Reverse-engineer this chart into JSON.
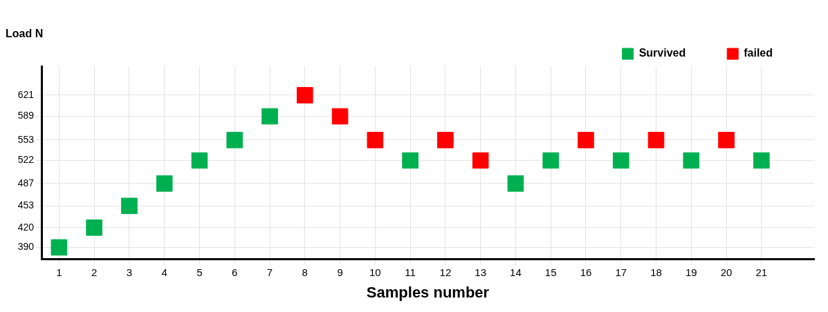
{
  "chart_data": {
    "type": "scatter",
    "xlabel": "Samples number",
    "ylabel": "Load N",
    "series": [
      {
        "name": "Survived",
        "color": "#00b050",
        "x": [
          1,
          2,
          3,
          4,
          5,
          6,
          7,
          11,
          14,
          15,
          17,
          19,
          21
        ],
        "values": [
          390,
          420,
          453,
          487,
          522,
          553,
          589,
          522,
          487,
          522,
          522,
          522,
          522
        ]
      },
      {
        "name": "failed",
        "color": "#ff0000",
        "x": [
          8,
          9,
          10,
          12,
          13,
          16,
          18,
          20
        ],
        "values": [
          621,
          589,
          553,
          553,
          522,
          553,
          553,
          553
        ]
      }
    ],
    "xlim": [
      0.5,
      22.5
    ],
    "xticks": [
      1,
      2,
      3,
      4,
      5,
      6,
      7,
      8,
      9,
      10,
      11,
      12,
      13,
      14,
      15,
      16,
      17,
      18,
      19,
      20,
      21
    ],
    "ylim": [
      372,
      665
    ],
    "yticks": [
      390,
      420,
      453,
      487,
      522,
      553,
      589,
      621
    ],
    "marker": "square",
    "grid": true,
    "legend": "top right"
  }
}
